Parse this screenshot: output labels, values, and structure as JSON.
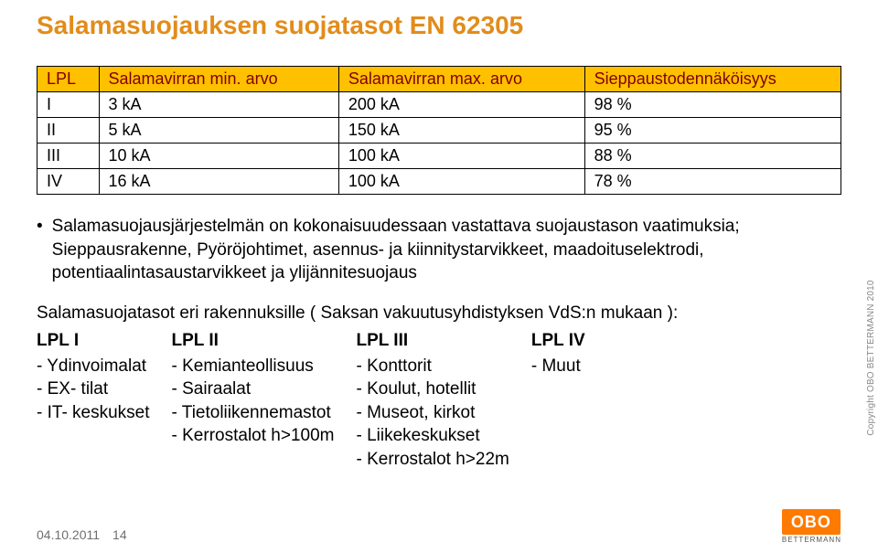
{
  "title": {
    "text": "Salamasuojauksen suojatasot EN 62305",
    "color": "#e28c1b"
  },
  "table": {
    "header_bg": "#ffc000",
    "header_color": "#800000",
    "row_color": "#000000",
    "columns": [
      "LPL",
      "Salamavirran min. arvo",
      "Salamavirran max. arvo",
      "Sieppaustodennäköisyys"
    ],
    "rows": [
      [
        "I",
        "3 kA",
        "200 kA",
        "98 %"
      ],
      [
        "II",
        "5 kA",
        "150 kA",
        "95 %"
      ],
      [
        "III",
        "10 kA",
        "100 kA",
        "88 %"
      ],
      [
        "IV",
        "16 kA",
        "100 kA",
        "78 %"
      ]
    ]
  },
  "paragraph": "Salamasuojausjärjestelmän on kokonaisuudessaan vastattava suojaustason vaatimuksia; Sieppausrakenne, Pyöröjohtimet, asennus- ja kiinnitystarvikkeet, maadoituselektrodi, potentiaalintasaustarvikkeet ja ylijännitesuojaus",
  "section_title": "Salamasuojatasot eri rakennuksille ( Saksan vakuutusyhdistyksen VdS:n mukaan ):",
  "cols": [
    {
      "head": "LPL I",
      "items": [
        "Ydinvoimalat",
        "EX- tilat",
        "IT- keskukset"
      ]
    },
    {
      "head": "LPL II",
      "items": [
        "Kemianteollisuus",
        "Sairaalat",
        "Tietoliikennemastot",
        "Kerrostalot h>100m"
      ]
    },
    {
      "head": "LPL III",
      "items": [
        "Konttorit",
        "Koulut, hotellit",
        "Museot, kirkot",
        "Liikekeskukset",
        "Kerrostalot h>22m"
      ]
    },
    {
      "head": "LPL IV",
      "items": [
        "Muut"
      ]
    }
  ],
  "item_prefix": "-   ",
  "footer": {
    "date": "04.10.2011",
    "page": "14"
  },
  "copyright": "Copyright OBO BETTERMANN 2010",
  "logo": {
    "box": "OBO",
    "sub": "BETTERMANN",
    "box_bg": "#ff7a00"
  }
}
